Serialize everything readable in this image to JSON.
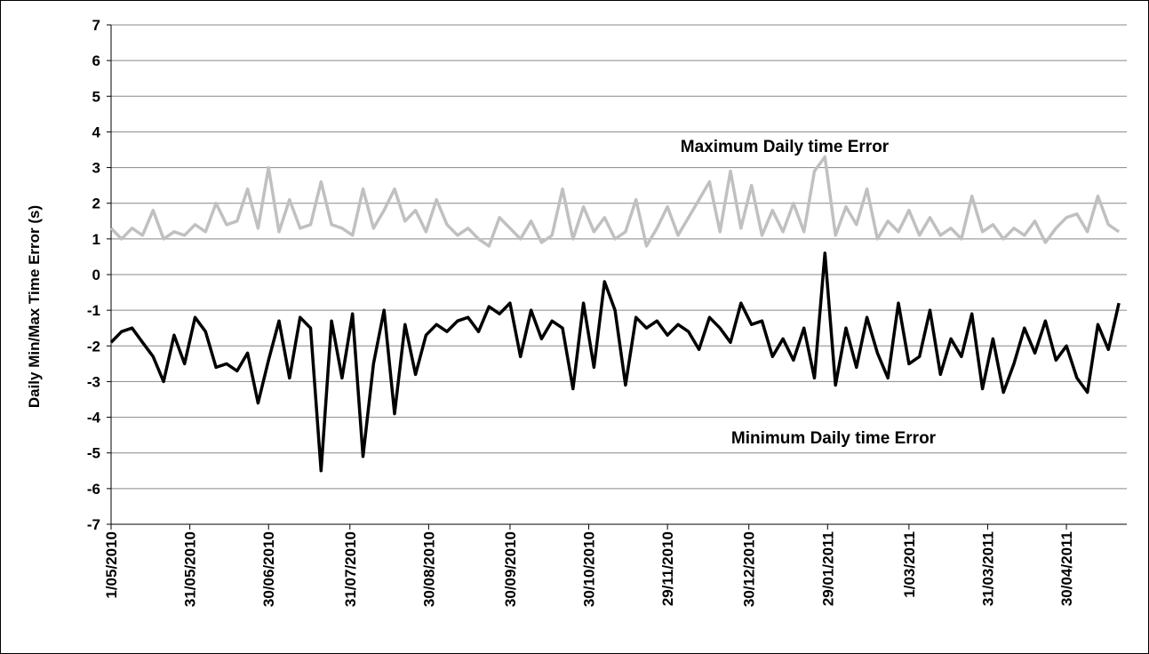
{
  "chart_data": {
    "type": "line",
    "y_label": "Daily Min/Max Time Error (s)",
    "annotations": [
      "Maximum Daily time Error",
      "Minimum Daily time Error"
    ],
    "x": [
      "1/05/2010",
      "5/05/2010",
      "9/05/2010",
      "13/05/2010",
      "17/05/2010",
      "21/05/2010",
      "25/05/2010",
      "29/05/2010",
      "2/06/2010",
      "6/06/2010",
      "10/06/2010",
      "14/06/2010",
      "18/06/2010",
      "22/06/2010",
      "26/06/2010",
      "30/06/2010",
      "4/07/2010",
      "8/07/2010",
      "12/07/2010",
      "16/07/2010",
      "20/07/2010",
      "24/07/2010",
      "28/07/2010",
      "1/08/2010",
      "5/08/2010",
      "9/08/2010",
      "13/08/2010",
      "17/08/2010",
      "21/08/2010",
      "25/08/2010",
      "29/08/2010",
      "2/09/2010",
      "6/09/2010",
      "10/09/2010",
      "14/09/2010",
      "18/09/2010",
      "22/09/2010",
      "26/09/2010",
      "30/09/2010",
      "4/10/2010",
      "8/10/2010",
      "12/10/2010",
      "16/10/2010",
      "20/10/2010",
      "24/10/2010",
      "28/10/2010",
      "1/11/2010",
      "5/11/2010",
      "9/11/2010",
      "13/11/2010",
      "17/11/2010",
      "21/11/2010",
      "25/11/2010",
      "29/11/2010",
      "3/12/2010",
      "7/12/2010",
      "11/12/2010",
      "15/12/2010",
      "19/12/2010",
      "23/12/2010",
      "27/12/2010",
      "31/12/2010",
      "4/01/2011",
      "8/01/2011",
      "12/01/2011",
      "16/01/2011",
      "20/01/2011",
      "24/01/2011",
      "28/01/2011",
      "1/02/2011",
      "5/02/2011",
      "9/02/2011",
      "13/02/2011",
      "17/02/2011",
      "21/02/2011",
      "25/02/2011",
      "1/03/2011",
      "5/03/2011",
      "9/03/2011",
      "13/03/2011",
      "17/03/2011",
      "21/03/2011",
      "25/03/2011",
      "29/03/2011",
      "2/04/2011",
      "6/04/2011",
      "10/04/2011",
      "14/04/2011",
      "18/04/2011",
      "22/04/2011",
      "26/04/2011",
      "30/04/2011",
      "4/05/2011",
      "8/05/2011",
      "12/05/2011",
      "16/05/2011",
      "20/05/2011"
    ],
    "series": [
      {
        "name": "Maximum Daily time Error",
        "color": "#c0c0c0",
        "values": [
          1.3,
          1.0,
          1.3,
          1.1,
          1.8,
          1.0,
          1.2,
          1.1,
          1.4,
          1.2,
          2.0,
          1.4,
          1.5,
          2.4,
          1.3,
          3.0,
          1.2,
          2.1,
          1.3,
          1.4,
          2.6,
          1.4,
          1.3,
          1.1,
          2.4,
          1.3,
          1.8,
          2.4,
          1.5,
          1.8,
          1.2,
          2.1,
          1.4,
          1.1,
          1.3,
          1.0,
          0.8,
          1.6,
          1.3,
          1.0,
          1.5,
          0.9,
          1.1,
          2.4,
          1.0,
          1.9,
          1.2,
          1.6,
          1.0,
          1.2,
          2.1,
          0.8,
          1.3,
          1.9,
          1.1,
          1.6,
          2.1,
          2.6,
          1.2,
          2.9,
          1.3,
          2.5,
          1.1,
          1.8,
          1.2,
          2.0,
          1.2,
          2.9,
          3.3,
          1.1,
          1.9,
          1.4,
          2.4,
          1.0,
          1.5,
          1.2,
          1.8,
          1.1,
          1.6,
          1.1,
          1.3,
          1.0,
          2.2,
          1.2,
          1.4,
          1.0,
          1.3,
          1.1,
          1.5,
          0.9,
          1.3,
          1.6,
          1.7,
          1.2,
          2.2,
          1.4,
          1.2
        ]
      },
      {
        "name": "Minimum Daily time Error",
        "color": "#000000",
        "values": [
          -1.9,
          -1.6,
          -1.5,
          -1.9,
          -2.3,
          -3.0,
          -1.7,
          -2.5,
          -1.2,
          -1.6,
          -2.6,
          -2.5,
          -2.7,
          -2.2,
          -3.6,
          -2.4,
          -1.3,
          -2.9,
          -1.2,
          -1.5,
          -5.5,
          -1.3,
          -2.9,
          -1.1,
          -5.1,
          -2.5,
          -1.0,
          -3.9,
          -1.4,
          -2.8,
          -1.7,
          -1.4,
          -1.6,
          -1.3,
          -1.2,
          -1.6,
          -0.9,
          -1.1,
          -0.8,
          -2.3,
          -1.0,
          -1.8,
          -1.3,
          -1.5,
          -3.2,
          -0.8,
          -2.6,
          -0.2,
          -1.0,
          -3.1,
          -1.2,
          -1.5,
          -1.3,
          -1.7,
          -1.4,
          -1.6,
          -2.1,
          -1.2,
          -1.5,
          -1.9,
          -0.8,
          -1.4,
          -1.3,
          -2.3,
          -1.8,
          -2.4,
          -1.5,
          -2.9,
          0.6,
          -3.1,
          -1.5,
          -2.6,
          -1.2,
          -2.2,
          -2.9,
          -0.8,
          -2.5,
          -2.3,
          -1.0,
          -2.8,
          -1.8,
          -2.3,
          -1.1,
          -3.2,
          -1.8,
          -3.3,
          -2.5,
          -1.5,
          -2.2,
          -1.3,
          -2.4,
          -2.0,
          -2.9,
          -3.3,
          -1.4,
          -2.1,
          -0.8
        ]
      }
    ],
    "xlim": [
      "1/05/2010",
      "23/05/2011"
    ],
    "xticks": [
      "1/05/2010",
      "31/05/2010",
      "30/06/2010",
      "31/07/2010",
      "30/08/2010",
      "30/09/2010",
      "30/10/2010",
      "29/11/2010",
      "30/12/2010",
      "29/01/2011",
      "1/03/2011",
      "31/03/2011",
      "30/04/2011"
    ],
    "ylim": [
      -7,
      7
    ],
    "yticks": [
      -7,
      -6,
      -5,
      -4,
      -3,
      -2,
      -1,
      0,
      1,
      2,
      3,
      4,
      5,
      6,
      7
    ],
    "grid": true
  }
}
